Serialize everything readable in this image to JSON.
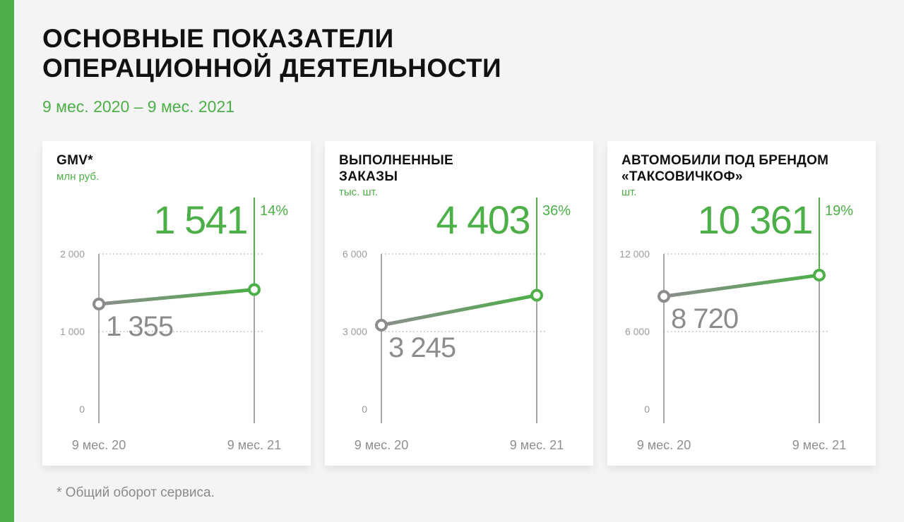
{
  "title_lines": [
    "ОСНОВНЫЕ ПОКАЗАТЕЛИ",
    "ОПЕРАЦИОННОЙ ДЕЯТЕЛЬНОСТИ"
  ],
  "subtitle": "9 мес. 2020 – 9 мес. 2021",
  "footnote": "* Общий оборот сервиса.",
  "colors": {
    "accent": "#4caf47",
    "grey": "#8c8c8c",
    "text": "#111111",
    "background": "#f4f4f4",
    "card": "#ffffff"
  },
  "chart_data": [
    {
      "type": "line",
      "title_lines": [
        "GMV*"
      ],
      "unit": "млн руб.",
      "categories": [
        "9 мес. 20",
        "9 мес. 21"
      ],
      "values": [
        1355,
        1541
      ],
      "value_labels": [
        "1 355",
        "1 541"
      ],
      "growth": "14%",
      "yticks": [
        "0",
        "1 000",
        "2 000"
      ],
      "ylim": [
        0,
        2000
      ],
      "grid": true
    },
    {
      "type": "line",
      "title_lines": [
        "ВЫПОЛНЕННЫЕ",
        "ЗАКАЗЫ"
      ],
      "unit": "тыс. шт.",
      "categories": [
        "9 мес. 20",
        "9 мес. 21"
      ],
      "values": [
        3245,
        4403
      ],
      "value_labels": [
        "3 245",
        "4 403"
      ],
      "growth": "36%",
      "yticks": [
        "0",
        "3 000",
        "6 000"
      ],
      "ylim": [
        0,
        6000
      ],
      "grid": true
    },
    {
      "type": "line",
      "title_lines": [
        "АВТОМОБИЛИ ПОД БРЕНДОМ",
        "«ТАКСОВИЧКОФ»"
      ],
      "unit": "шт.",
      "categories": [
        "9 мес. 20",
        "9 мес. 21"
      ],
      "values": [
        8720,
        10361
      ],
      "value_labels": [
        "8 720",
        "10 361"
      ],
      "growth": "19%",
      "yticks": [
        "0",
        "6 000",
        "12 000"
      ],
      "ylim": [
        0,
        12000
      ],
      "grid": true
    }
  ]
}
